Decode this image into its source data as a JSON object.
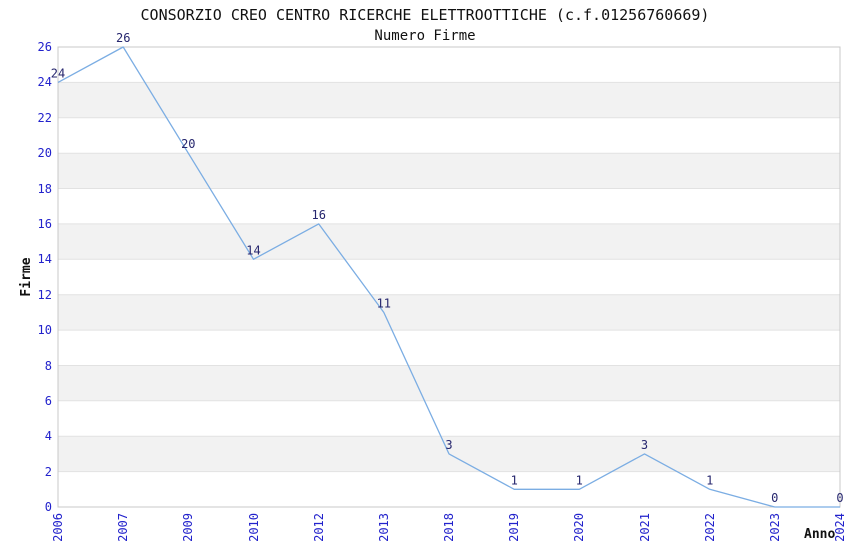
{
  "chart_data": {
    "type": "line",
    "title": "CONSORZIO CREO CENTRO RICERCHE ELETTROOTTICHE (c.f.01256760669)",
    "subtitle": "Numero Firme",
    "xlabel": "Anno",
    "ylabel": "Firme",
    "categories": [
      "2006",
      "2007",
      "2009",
      "2010",
      "2012",
      "2013",
      "2018",
      "2019",
      "2020",
      "2021",
      "2022",
      "2023",
      "2024"
    ],
    "values": [
      24,
      26,
      20,
      14,
      16,
      11,
      3,
      1,
      1,
      3,
      1,
      0,
      0
    ],
    "ylim": [
      0,
      26
    ],
    "y_ticks": [
      0,
      2,
      4,
      6,
      8,
      10,
      12,
      14,
      16,
      18,
      20,
      22,
      24,
      26
    ],
    "y_tick_step": 2,
    "grid": "horizontal gridlines with alternating shaded bands",
    "legend": "none",
    "colors": {
      "line": "#7bade3",
      "tick_label": "#2222cc",
      "data_label": "#26266e",
      "band": "#f2f2f2",
      "grid_line": "#e2e2e2",
      "plot_border": "#c8c8c8",
      "text": "#111111",
      "background": "#ffffff"
    }
  }
}
